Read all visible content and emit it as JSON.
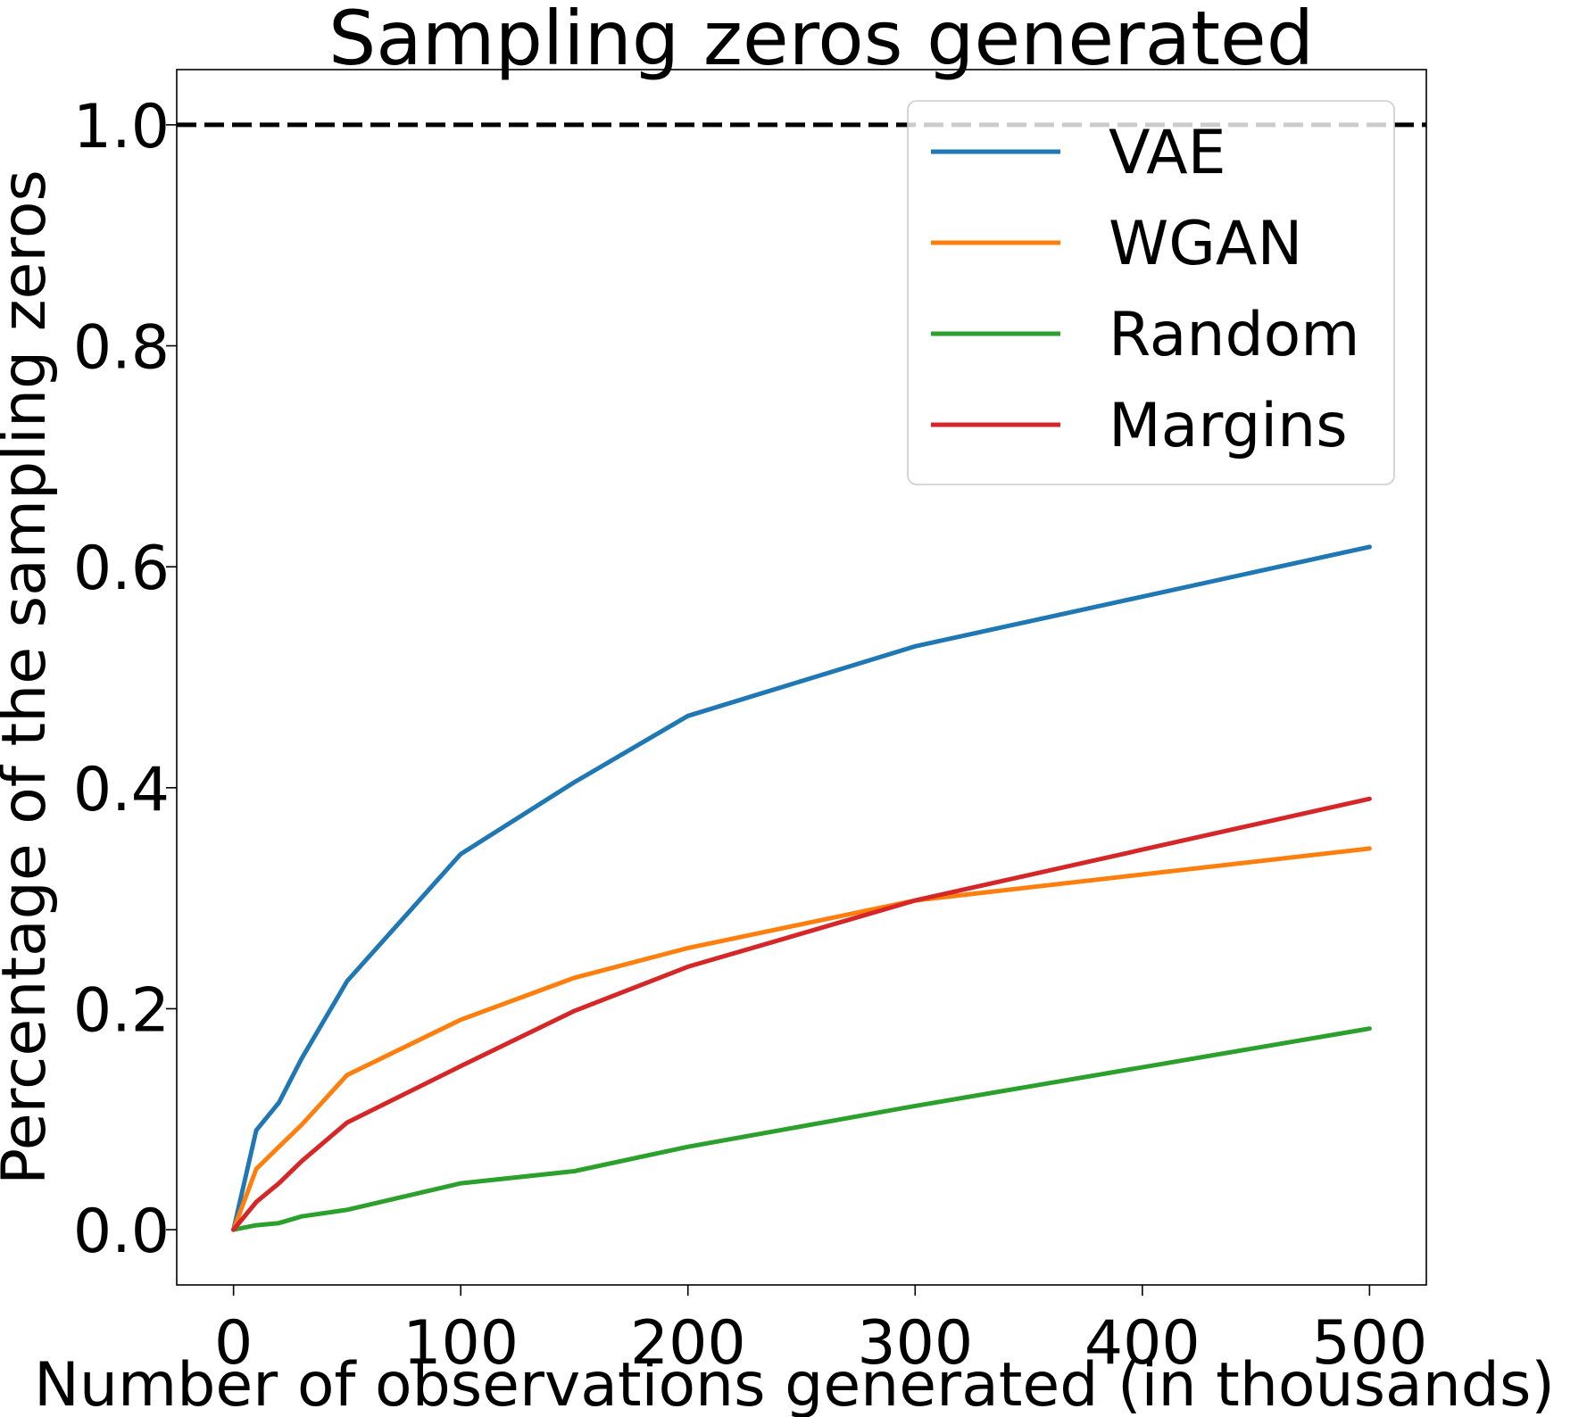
{
  "chart_data": {
    "type": "line",
    "title": "Sampling zeros generated",
    "xlabel": "Number of observations generated (in thousands)",
    "ylabel": "Percentage of the sampling zeros",
    "xlim": [
      -25,
      525
    ],
    "ylim": [
      -0.05,
      1.05
    ],
    "xticks": [
      0,
      100,
      200,
      300,
      400,
      500
    ],
    "yticks": [
      0.0,
      0.2,
      0.4,
      0.6,
      0.8,
      1.0
    ],
    "reference_line": {
      "y": 1.0,
      "style": "dashed",
      "color": "#000000"
    },
    "grid": false,
    "legend_position": "top-right",
    "series": [
      {
        "name": "VAE",
        "color": "#1f77b4",
        "x": [
          0,
          10,
          20,
          30,
          50,
          100,
          150,
          200,
          300,
          500
        ],
        "y": [
          0.0,
          0.09,
          0.115,
          0.155,
          0.225,
          0.34,
          0.405,
          0.465,
          0.528,
          0.618
        ]
      },
      {
        "name": "WGAN",
        "color": "#ff7f0e",
        "x": [
          0,
          10,
          20,
          30,
          50,
          100,
          150,
          200,
          300,
          500
        ],
        "y": [
          0.0,
          0.055,
          0.075,
          0.095,
          0.14,
          0.19,
          0.228,
          0.255,
          0.298,
          0.345
        ]
      },
      {
        "name": "Random",
        "color": "#2ca02c",
        "x": [
          0,
          10,
          20,
          30,
          50,
          100,
          150,
          200,
          300,
          500
        ],
        "y": [
          0.0,
          0.004,
          0.006,
          0.012,
          0.018,
          0.042,
          0.053,
          0.075,
          0.112,
          0.182
        ]
      },
      {
        "name": "Margins",
        "color": "#d62728",
        "x": [
          0,
          10,
          20,
          30,
          50,
          100,
          150,
          200,
          300,
          500
        ],
        "y": [
          0.0,
          0.025,
          0.042,
          0.062,
          0.097,
          0.148,
          0.198,
          0.238,
          0.298,
          0.39
        ]
      }
    ]
  }
}
